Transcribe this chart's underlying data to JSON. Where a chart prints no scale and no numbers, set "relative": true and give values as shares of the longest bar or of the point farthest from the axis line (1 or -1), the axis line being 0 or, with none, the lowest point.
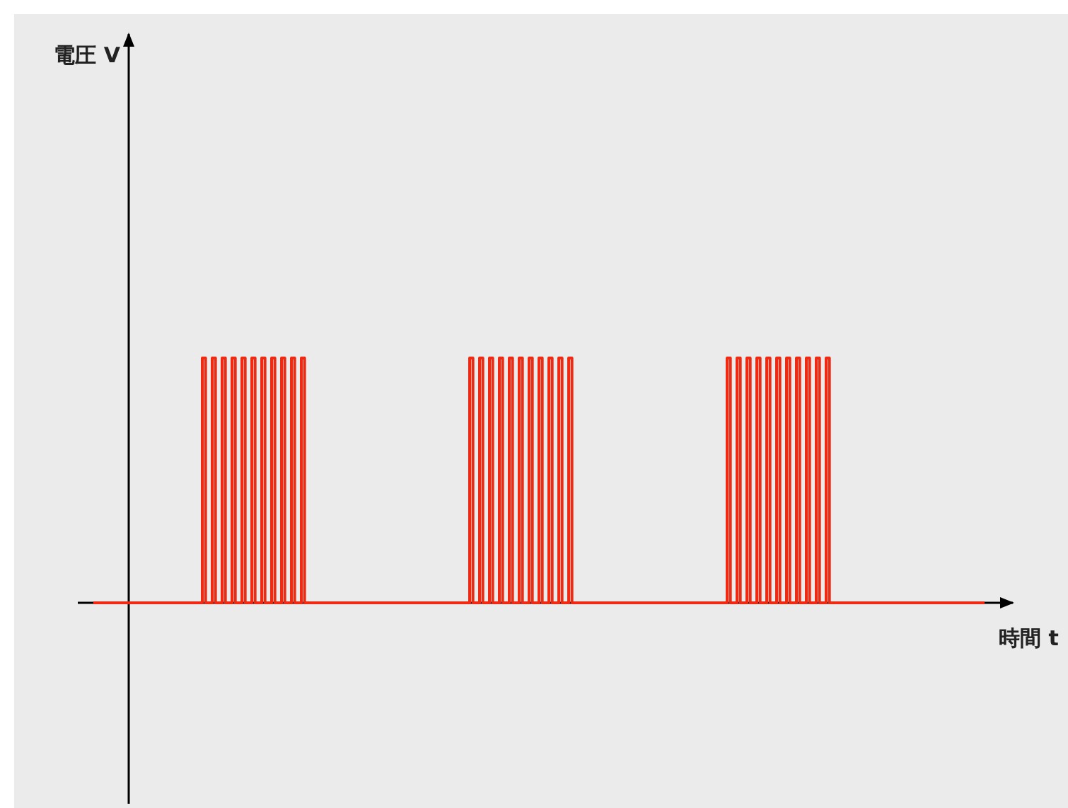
{
  "chart_data": {
    "type": "step",
    "relative": true,
    "xlabel": "時間 t",
    "annotations": [
      "電圧 V"
    ],
    "color": "#f02a12",
    "categories": [
      null,
      null,
      null,
      null,
      null,
      null,
      null,
      null,
      null,
      null,
      null,
      null,
      null,
      null,
      null,
      null,
      null,
      null,
      null,
      null,
      null,
      null,
      null,
      null,
      null,
      null,
      null,
      null,
      null,
      null,
      null,
      null,
      null,
      null,
      null,
      null,
      null,
      null,
      null,
      null,
      null,
      null,
      null,
      null,
      null,
      null,
      null,
      null,
      null,
      null,
      null,
      null,
      null,
      null,
      null,
      null,
      null,
      null,
      null,
      null,
      null,
      null,
      null,
      null,
      null,
      null,
      null,
      null,
      null,
      null,
      null,
      null,
      null,
      null,
      null,
      null,
      null,
      null,
      null,
      null,
      null,
      null,
      null,
      null,
      null,
      null,
      null,
      null,
      null,
      null,
      null,
      null,
      null,
      null,
      null,
      null,
      null,
      null,
      null,
      null,
      null,
      null,
      null,
      null,
      null,
      null,
      null,
      null,
      null,
      null,
      null,
      null,
      null,
      null,
      null,
      null,
      null,
      null,
      null,
      null,
      null,
      null,
      null,
      null,
      null,
      null,
      null,
      null,
      null,
      null,
      null,
      null,
      null,
      null,
      null,
      null,
      null,
      null,
      null,
      null,
      null,
      null,
      null,
      null,
      null,
      null,
      null,
      null,
      null,
      null,
      null,
      null,
      null,
      null,
      null,
      null,
      null,
      null,
      null,
      null,
      null,
      null,
      null,
      null,
      null,
      null,
      null,
      null,
      null,
      null,
      null,
      null,
      null,
      null,
      null,
      null,
      null,
      null,
      null,
      null,
      null,
      null,
      null,
      null,
      null,
      null,
      null,
      null,
      null,
      null,
      null,
      null,
      null,
      null,
      null,
      null,
      null,
      null,
      null,
      null,
      null,
      null,
      null,
      null,
      null,
      null,
      null,
      null,
      null,
      null,
      null,
      null,
      null,
      null,
      null,
      null,
      null,
      null,
      null,
      null,
      null,
      null,
      null,
      null,
      null,
      null,
      null,
      null,
      null,
      null,
      null,
      null,
      null,
      null,
      null,
      null,
      null,
      null,
      null,
      null,
      null,
      null,
      null,
      null,
      null,
      null,
      null,
      null,
      null,
      null,
      null,
      null,
      null,
      null,
      null,
      null,
      null,
      null,
      null,
      null,
      null,
      null,
      null,
      null,
      null,
      null,
      null,
      null,
      null,
      null,
      null
    ],
    "values": [
      0,
      0,
      0,
      0,
      0,
      0,
      0,
      0,
      0,
      0,
      0,
      0,
      0,
      0,
      0,
      0,
      0,
      0,
      0,
      0,
      0,
      0,
      0,
      0,
      0,
      0,
      0,
      0,
      0,
      0,
      0,
      0,
      0,
      1,
      0,
      0,
      1,
      0,
      0,
      1,
      0,
      0,
      1,
      0,
      0,
      1,
      0,
      0,
      1,
      0,
      0,
      1,
      0,
      0,
      1,
      0,
      0,
      1,
      0,
      0,
      1,
      0,
      0,
      1,
      0,
      0,
      0,
      0,
      0,
      0,
      0,
      0,
      0,
      0,
      0,
      0,
      0,
      0,
      0,
      0,
      0,
      0,
      0,
      0,
      0,
      0,
      0,
      0,
      0,
      0,
      0,
      0,
      0,
      0,
      0,
      0,
      0,
      0,
      0,
      0,
      0,
      0,
      0,
      0,
      0,
      0,
      0,
      0,
      0,
      0,
      0,
      0,
      0,
      0,
      1,
      0,
      0,
      1,
      0,
      0,
      1,
      0,
      0,
      1,
      0,
      0,
      1,
      0,
      0,
      1,
      0,
      0,
      1,
      0,
      0,
      1,
      0,
      0,
      1,
      0,
      0,
      1,
      0,
      0,
      1,
      0,
      0,
      0,
      0,
      0,
      0,
      0,
      0,
      0,
      0,
      0,
      0,
      0,
      0,
      0,
      0,
      0,
      0,
      0,
      0,
      0,
      0,
      0,
      0,
      0,
      0,
      0,
      0,
      0,
      0,
      0,
      0,
      0,
      0,
      0,
      0,
      0,
      0,
      0,
      0,
      0,
      0,
      0,
      0,
      0,
      0,
      0,
      1,
      0,
      0,
      1,
      0,
      0,
      1,
      0,
      0,
      1,
      0,
      0,
      1,
      0,
      0,
      1,
      0,
      0,
      1,
      0,
      0,
      1,
      0,
      0,
      1,
      0,
      0,
      1,
      0,
      0,
      1,
      0,
      0,
      0,
      0,
      0,
      0,
      0,
      0,
      0,
      0,
      0,
      0,
      0,
      0,
      0,
      0,
      0,
      0,
      0,
      0,
      0,
      0,
      0,
      0,
      0,
      0,
      0,
      0,
      0,
      0,
      0,
      0,
      0,
      0,
      0,
      0,
      0,
      0,
      0,
      0,
      0,
      0,
      0,
      0,
      0,
      0,
      0,
      0
    ]
  }
}
